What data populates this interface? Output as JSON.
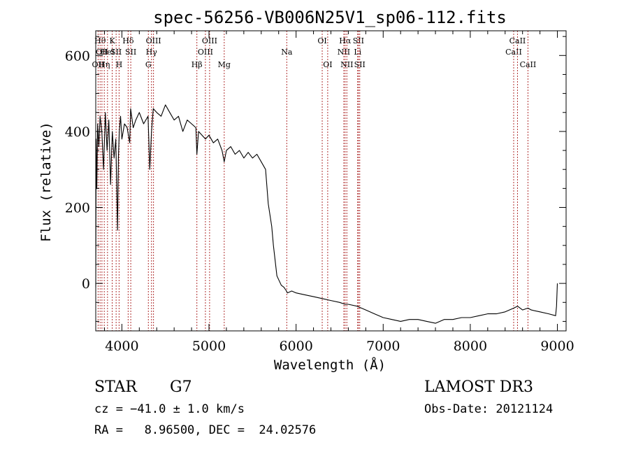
{
  "chart_data": {
    "type": "line",
    "title": "spec-56256-VB006N25V1_sp06-112.fits",
    "xlabel": "Wavelength (Å)",
    "ylabel": "Flux (relative)",
    "xlim": [
      3700,
      9100
    ],
    "ylim": [
      -125,
      665
    ],
    "x_ticks": [
      4000,
      5000,
      6000,
      7000,
      8000,
      9000
    ],
    "y_ticks": [
      0,
      200,
      400,
      600
    ],
    "grid": false,
    "series": [
      {
        "x": [
          3700,
          3705,
          3712,
          3722,
          3735,
          3750,
          3770,
          3790,
          3810,
          3830,
          3850,
          3870,
          3890,
          3910,
          3930,
          3950,
          3960,
          3970,
          3985,
          4000,
          4030,
          4060,
          4090,
          4100,
          4130,
          4160,
          4200,
          4250,
          4300,
          4320,
          4340,
          4360,
          4400,
          4450,
          4500,
          4550,
          4600,
          4650,
          4700,
          4750,
          4800,
          4850,
          4861,
          4880,
          4920,
          4960,
          5000,
          5050,
          5100,
          5150,
          5175,
          5200,
          5250,
          5300,
          5350,
          5400,
          5450,
          5500,
          5550,
          5600,
          5650,
          5680,
          5700,
          5720,
          5740,
          5760,
          5780,
          5800,
          5830,
          5860,
          5890,
          5900,
          5950,
          6000,
          6100,
          6200,
          6300,
          6400,
          6500,
          6563,
          6600,
          6700,
          6800,
          6900,
          7000,
          7100,
          7200,
          7300,
          7400,
          7500,
          7600,
          7700,
          7800,
          7900,
          8000,
          8100,
          8200,
          8300,
          8400,
          8500,
          8542,
          8600,
          8662,
          8700,
          8800,
          8900,
          8980,
          8990,
          9000
        ],
        "y": [
          -10,
          380,
          250,
          420,
          360,
          440,
          400,
          300,
          450,
          350,
          430,
          260,
          400,
          330,
          380,
          140,
          330,
          400,
          440,
          380,
          420,
          410,
          370,
          460,
          410,
          430,
          450,
          420,
          440,
          300,
          400,
          460,
          450,
          440,
          470,
          450,
          430,
          440,
          400,
          430,
          420,
          410,
          340,
          400,
          390,
          380,
          390,
          370,
          380,
          350,
          320,
          350,
          360,
          340,
          350,
          330,
          345,
          330,
          340,
          320,
          300,
          210,
          180,
          150,
          100,
          60,
          20,
          10,
          -5,
          -10,
          -20,
          -25,
          -20,
          -25,
          -30,
          -35,
          -40,
          -45,
          -50,
          -55,
          -55,
          -60,
          -70,
          -80,
          -90,
          -95,
          -100,
          -95,
          -95,
          -100,
          -105,
          -95,
          -95,
          -90,
          -90,
          -85,
          -80,
          -80,
          -75,
          -65,
          -60,
          -70,
          -65,
          -70,
          -75,
          -80,
          -85,
          -60,
          0
        ]
      }
    ],
    "line_markers": [
      {
        "x": 3727,
        "label": "OII",
        "row": 3
      },
      {
        "x": 3750,
        "label": "Hθ",
        "row": 1
      },
      {
        "x": 3771,
        "label": "OII",
        "row": 2
      },
      {
        "x": 3798,
        "label": "Hη",
        "row": 3
      },
      {
        "x": 3835,
        "label": "HeI",
        "row": 2
      },
      {
        "x": 3889,
        "label": "K",
        "row": 1
      },
      {
        "x": 3934,
        "label": "SII",
        "row": 2
      },
      {
        "x": 3968,
        "label": "H",
        "row": 3
      },
      {
        "x": 4072,
        "label": "Hδ",
        "row": 1
      },
      {
        "x": 4102,
        "label": "SII",
        "row": 2
      },
      {
        "x": 4304,
        "label": "G",
        "row": 3
      },
      {
        "x": 4340,
        "label": "Hγ",
        "row": 2
      },
      {
        "x": 4363,
        "label": "OIII",
        "row": 1
      },
      {
        "x": 4861,
        "label": "Hβ",
        "row": 3
      },
      {
        "x": 4959,
        "label": "OIII",
        "row": 2
      },
      {
        "x": 5007,
        "label": "OIII",
        "row": 1
      },
      {
        "x": 5175,
        "label": "Mg",
        "row": 3
      },
      {
        "x": 5893,
        "label": "Na",
        "row": 2
      },
      {
        "x": 6300,
        "label": "OI",
        "row": 1
      },
      {
        "x": 6363,
        "label": "OI",
        "row": 3
      },
      {
        "x": 6548,
        "label": "NII",
        "row": 2
      },
      {
        "x": 6563,
        "label": "Hα",
        "row": 1
      },
      {
        "x": 6583,
        "label": "NII",
        "row": 3
      },
      {
        "x": 6707,
        "label": "Li",
        "row": 2
      },
      {
        "x": 6716,
        "label": "SII",
        "row": 1
      },
      {
        "x": 6731,
        "label": "SII",
        "row": 3
      },
      {
        "x": 8498,
        "label": "CaII",
        "row": 2
      },
      {
        "x": 8542,
        "label": "CaII",
        "row": 1
      },
      {
        "x": 8662,
        "label": "CaII",
        "row": 3
      }
    ]
  },
  "footer": {
    "object_class": "STAR",
    "subclass": "G7",
    "survey": "LAMOST DR3",
    "cz": "cz = −41.0 ± 1.0 km/s",
    "obs_date": "Obs-Date: 20121124",
    "coords": "RA =   8.96500, DEC =  24.02576"
  }
}
